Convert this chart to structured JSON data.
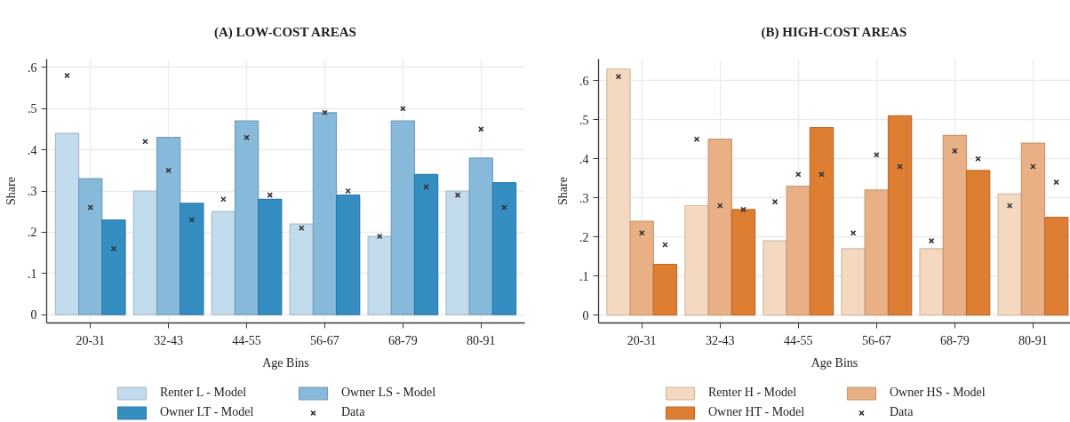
{
  "chart_data": [
    {
      "type": "bar",
      "title": "(A) LOW-COST AREAS",
      "xlabel": "Age Bins",
      "ylabel": "Share",
      "categories": [
        "20-31",
        "32-43",
        "44-55",
        "56-67",
        "68-79",
        "80-91"
      ],
      "series": [
        {
          "name": "Renter L - Model",
          "color": "#c2dcee",
          "values": [
            0.44,
            0.3,
            0.25,
            0.22,
            0.19,
            0.3
          ]
        },
        {
          "name": "Owner LS - Model",
          "color": "#86b9da",
          "values": [
            0.33,
            0.43,
            0.47,
            0.49,
            0.47,
            0.38
          ]
        },
        {
          "name": "Owner LT - Model",
          "color": "#358ec2",
          "values": [
            0.23,
            0.27,
            0.28,
            0.29,
            0.34,
            0.32
          ]
        },
        {
          "name": "Data",
          "type": "scatter",
          "color": "#333333",
          "x": [
            "20-31",
            "32-43",
            "44-55",
            "56-67",
            "68-79",
            "80-91"
          ],
          "values": [
            0.58,
            0.42,
            0.28,
            0.21,
            0.19,
            0.29
          ]
        },
        {
          "type": "scatter",
          "color": "#333333",
          "x": [
            "20-31",
            "32-43",
            "44-55",
            "56-67",
            "68-79",
            "80-91"
          ],
          "values": [
            0.26,
            0.35,
            0.43,
            0.49,
            0.5,
            0.45
          ]
        },
        {
          "type": "scatter",
          "color": "#333333",
          "x": [
            "20-31",
            "32-43",
            "44-55",
            "56-67",
            "68-79",
            "80-91"
          ],
          "values": [
            0.16,
            0.23,
            0.29,
            0.3,
            0.31,
            0.26
          ]
        }
      ],
      "ylim": [
        -0.02,
        0.62
      ],
      "yticks": [
        0,
        {
          "value": 0.1,
          "label": ".1"
        },
        {
          "value": 0.2,
          "label": ".2"
        },
        {
          "value": 0.3,
          "label": ".3"
        },
        {
          "value": 0.4,
          "label": ".4"
        },
        {
          "value": 0.5,
          "label": ".5"
        },
        {
          "value": 0.6,
          "label": ".6"
        }
      ],
      "grid": true,
      "legend": "bottom",
      "marker": "cross"
    },
    {
      "type": "bar",
      "title": "(B) HIGH-COST AREAS",
      "xlabel": "Age Bins",
      "ylabel": "Share",
      "categories": [
        "20-31",
        "32-43",
        "44-55",
        "56-67",
        "68-79",
        "80-91"
      ],
      "series": [
        {
          "name": "Renter H - Model",
          "color": "#f5d8c0",
          "values": [
            0.63,
            0.28,
            0.19,
            0.17,
            0.17,
            0.31
          ]
        },
        {
          "name": "Owner HS - Model",
          "color": "#eab085",
          "values": [
            0.24,
            0.45,
            0.33,
            0.32,
            0.46,
            0.44
          ]
        },
        {
          "name": "Owner HT - Model",
          "color": "#dd7e32",
          "values": [
            0.13,
            0.27,
            0.48,
            0.51,
            0.37,
            0.25
          ]
        },
        {
          "name": "Data",
          "type": "scatter",
          "color": "#333333",
          "x": [
            "20-31",
            "32-43",
            "44-55",
            "56-67",
            "68-79",
            "80-91"
          ],
          "values": [
            0.61,
            0.45,
            0.29,
            0.21,
            0.19,
            0.28
          ]
        },
        {
          "type": "scatter",
          "color": "#333333",
          "x": [
            "20-31",
            "32-43",
            "44-55",
            "56-67",
            "68-79",
            "80-91"
          ],
          "values": [
            0.21,
            0.28,
            0.36,
            0.41,
            0.42,
            0.38
          ]
        },
        {
          "type": "scatter",
          "color": "#333333",
          "x": [
            "20-31",
            "32-43",
            "44-55",
            "56-67",
            "68-79",
            "80-91"
          ],
          "values": [
            0.18,
            0.27,
            0.36,
            0.38,
            0.4,
            0.34
          ]
        }
      ],
      "ylim": [
        -0.02,
        0.655
      ],
      "yticks": [
        0,
        {
          "value": 0.1,
          "label": ".1"
        },
        {
          "value": 0.2,
          "label": ".2"
        },
        {
          "value": 0.3,
          "label": ".3"
        },
        {
          "value": 0.4,
          "label": ".4"
        },
        {
          "value": 0.5,
          "label": ".5"
        },
        {
          "value": 0.6,
          "label": ".6"
        }
      ],
      "grid": true,
      "legend": "bottom",
      "marker": "cross"
    }
  ]
}
